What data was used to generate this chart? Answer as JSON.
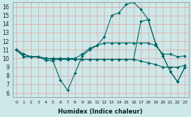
{
  "xlabel": "Humidex (Indice chaleur)",
  "background_color": "#cce8e8",
  "grid_color": "#e8a0a0",
  "line_color": "#006666",
  "xlim": [
    -0.5,
    23.5
  ],
  "ylim": [
    5.5,
    16.5
  ],
  "yticks": [
    6,
    7,
    8,
    9,
    10,
    11,
    12,
    13,
    14,
    15,
    16
  ],
  "xticks": [
    0,
    1,
    2,
    3,
    4,
    5,
    6,
    7,
    8,
    9,
    10,
    11,
    12,
    13,
    14,
    15,
    16,
    17,
    18,
    19,
    20,
    21,
    22,
    23
  ],
  "lines": [
    {
      "y": [
        11.0,
        10.5,
        10.2,
        10.2,
        9.8,
        9.7,
        7.5,
        6.3,
        8.3,
        10.3,
        11.0,
        11.5,
        12.5,
        15.0,
        15.3,
        16.3,
        16.5,
        15.7,
        14.5,
        11.7,
        10.3,
        8.5,
        7.3,
        9.0
      ]
    },
    {
      "y": [
        11.0,
        10.5,
        10.2,
        10.2,
        10.0,
        10.0,
        10.0,
        10.0,
        10.0,
        10.5,
        11.2,
        11.5,
        11.8,
        11.8,
        11.8,
        11.8,
        11.8,
        11.8,
        11.8,
        11.5,
        10.5,
        10.5,
        10.2,
        10.3
      ]
    },
    {
      "y": [
        11.0,
        10.2,
        10.2,
        10.2,
        10.0,
        9.9,
        9.9,
        9.9,
        9.9,
        9.9,
        9.9,
        9.9,
        9.9,
        9.9,
        9.9,
        9.9,
        9.9,
        9.7,
        9.5,
        9.3,
        9.0,
        9.0,
        9.0,
        9.2
      ]
    },
    {
      "y": [
        11.0,
        10.2,
        10.2,
        10.2,
        10.0,
        9.9,
        9.9,
        9.9,
        9.9,
        9.9,
        9.9,
        9.9,
        9.9,
        9.9,
        9.9,
        9.9,
        9.9,
        14.3,
        14.5,
        11.7,
        10.3,
        8.5,
        7.3,
        9.0
      ]
    }
  ]
}
